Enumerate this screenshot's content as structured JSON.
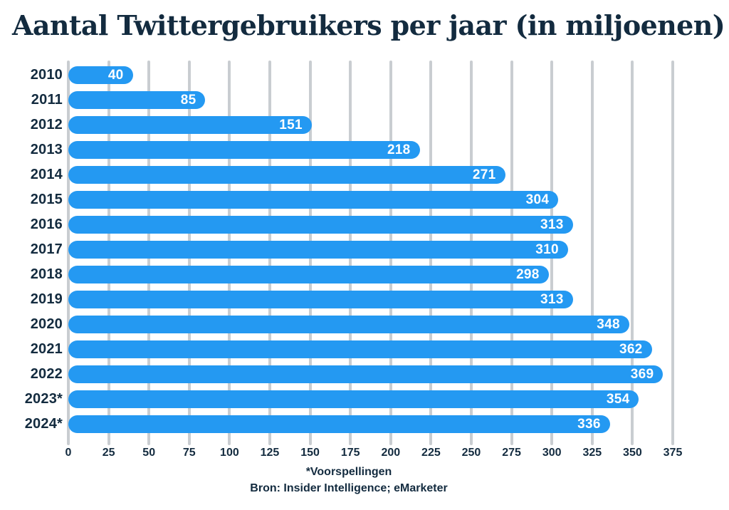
{
  "page": {
    "background_color": "#ffffff"
  },
  "colors": {
    "text_navy": "#132b3f",
    "bar_blue": "#2499f2",
    "gridline_gray": "#c9cdd1",
    "value_label_white": "#ffffff"
  },
  "chart_data": {
    "type": "bar",
    "orientation": "horizontal",
    "title": "Aantal Twittergebruikers per jaar (in miljoenen)",
    "categories": [
      "2010",
      "2011",
      "2012",
      "2013",
      "2014",
      "2015",
      "2016",
      "2017",
      "2018",
      "2019",
      "2020",
      "2021",
      "2022",
      "2023*",
      "2024*"
    ],
    "values": [
      40,
      85,
      151,
      218,
      271,
      304,
      313,
      310,
      298,
      313,
      348,
      362,
      369,
      354,
      336
    ],
    "xlabel": "",
    "ylabel": "",
    "xlim": [
      0,
      375
    ],
    "x_ticks": [
      0,
      25,
      50,
      75,
      100,
      125,
      150,
      175,
      200,
      225,
      250,
      275,
      300,
      325,
      350,
      375
    ],
    "grid": true,
    "legend": "none",
    "value_labels_position": "inside-end",
    "footnote": "*Voorspellingen",
    "source": "Bron: Insider Intelligence; eMarketer"
  }
}
